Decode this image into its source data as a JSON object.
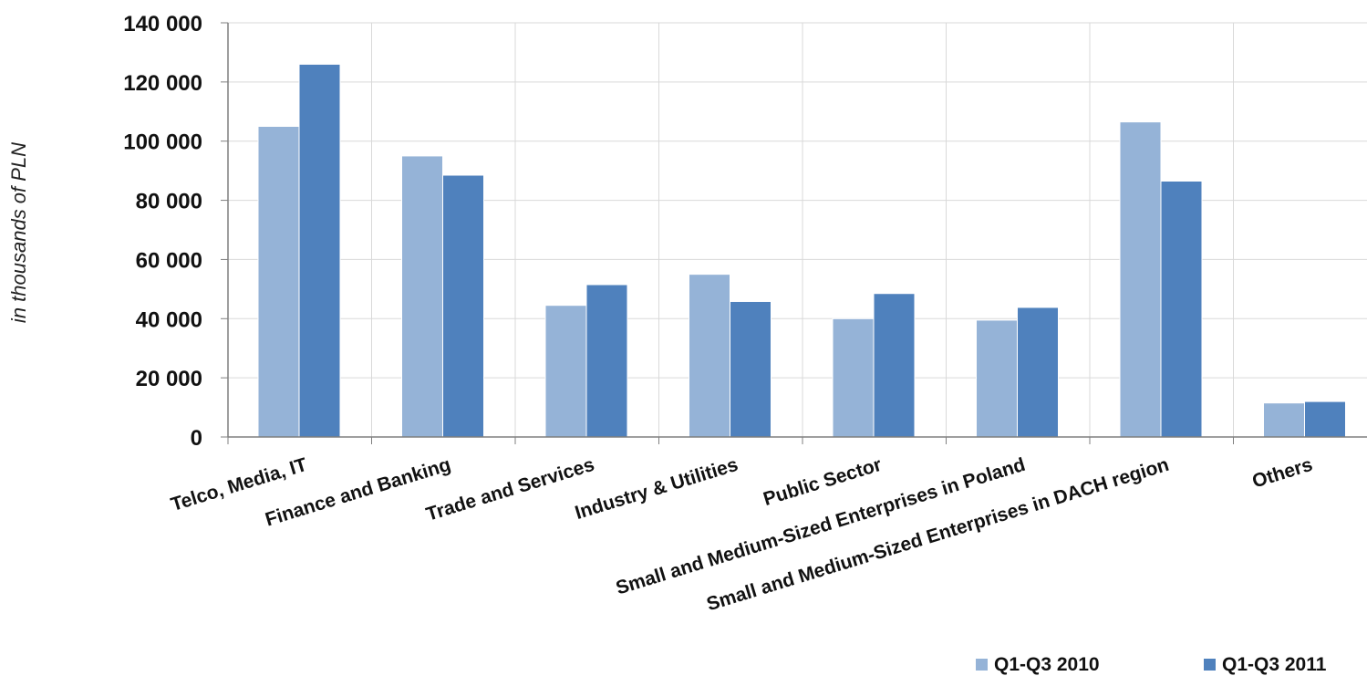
{
  "chart_data": {
    "type": "bar",
    "ylabel": "in thousands of PLN",
    "xlabel": "",
    "ylim": [
      0,
      140000
    ],
    "yticks": [
      0,
      20000,
      40000,
      60000,
      80000,
      100000,
      120000,
      140000
    ],
    "ytick_labels": [
      "0",
      "20 000",
      "40 000",
      "60 000",
      "80 000",
      "100 000",
      "120 000",
      "140 000"
    ],
    "grid": true,
    "legend_position": "bottom-right",
    "categories": [
      "Telco, Media, IT",
      "Finance and Banking",
      "Trade and Services",
      "Industry & Utilities",
      "Public Sector",
      "Small and Medium-Sized Enterprises in Poland",
      "Small and Medium-Sized Enterprises in DACH region",
      "Others"
    ],
    "series": [
      {
        "name": "Q1-Q3 2010",
        "color": "#95b3d7",
        "values": [
          105000,
          95000,
          44500,
          55000,
          40000,
          39500,
          106500,
          11500
        ]
      },
      {
        "name": "Q1-Q3 2011",
        "color": "#4f81bd",
        "values": [
          126000,
          88500,
          51500,
          45800,
          48500,
          43800,
          86500,
          12000
        ]
      }
    ]
  }
}
